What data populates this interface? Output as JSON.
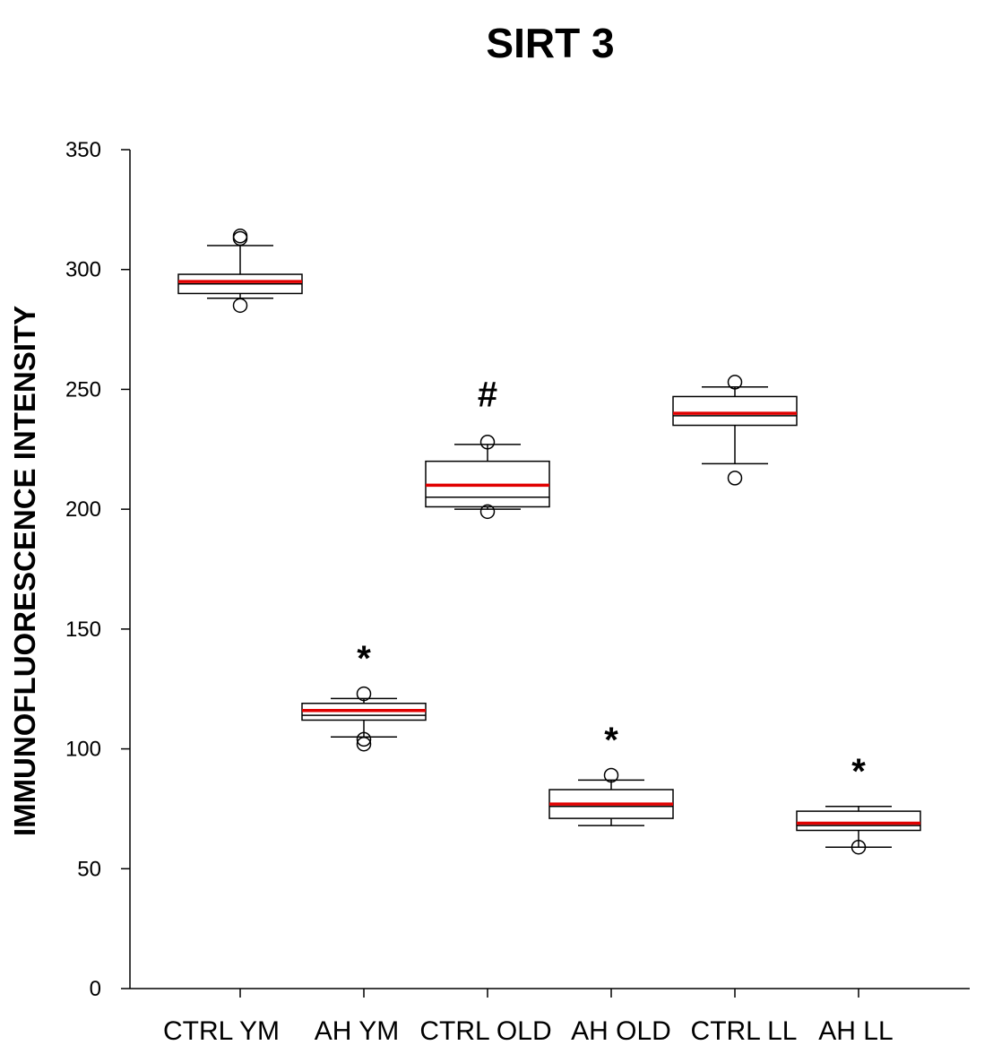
{
  "chart_data": {
    "type": "box",
    "title": "SIRT 3",
    "xlabel": "",
    "ylabel": "IMMUNOFLUORESCENCE INTENSITY",
    "ylim": [
      0,
      350
    ],
    "yticks": [
      0,
      50,
      100,
      150,
      200,
      250,
      300,
      350
    ],
    "grid": false,
    "mean_line_color": "#e00000",
    "groups": [
      {
        "name": "CTRL YM",
        "whisker_low": 288,
        "q1": 290,
        "median": 294,
        "q3": 298,
        "whisker_high": 310,
        "mean": 295,
        "outliers": [
          285,
          313,
          314
        ],
        "annotation": ""
      },
      {
        "name": "AH YM",
        "whisker_low": 105,
        "q1": 112,
        "median": 114,
        "q3": 119,
        "whisker_high": 121,
        "mean": 116,
        "outliers": [
          102,
          104,
          123
        ],
        "annotation": "*"
      },
      {
        "name": "CTRL OLD",
        "whisker_low": 200,
        "q1": 201,
        "median": 205,
        "q3": 220,
        "whisker_high": 227,
        "mean": 210,
        "outliers": [
          199,
          228
        ],
        "annotation": "#"
      },
      {
        "name": "AH OLD",
        "whisker_low": 68,
        "q1": 71,
        "median": 76,
        "q3": 83,
        "whisker_high": 87,
        "mean": 77,
        "outliers": [
          89
        ],
        "annotation": "*"
      },
      {
        "name": "CTRL LL",
        "whisker_low": 219,
        "q1": 235,
        "median": 239,
        "q3": 247,
        "whisker_high": 251,
        "mean": 240,
        "outliers": [
          213,
          253
        ],
        "annotation": ""
      },
      {
        "name": "AH LL",
        "whisker_low": 59,
        "q1": 66,
        "median": 68,
        "q3": 74,
        "whisker_high": 76,
        "mean": 69,
        "outliers": [
          59
        ],
        "annotation": "*"
      }
    ]
  }
}
